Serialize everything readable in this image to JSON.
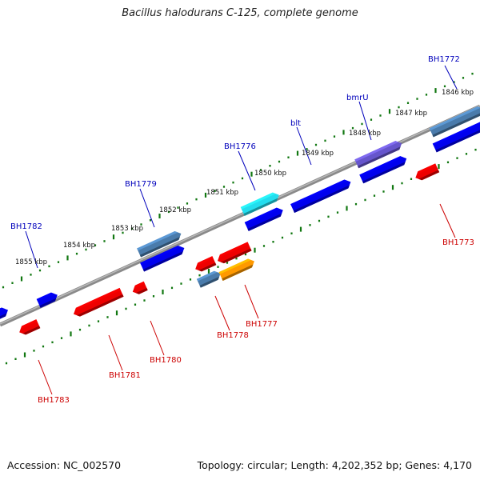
{
  "title": "Bacillus halodurans C-125, complete genome",
  "footer": {
    "accession_label": "Accession:",
    "accession": "NC_002570",
    "topology_label": "Topology:",
    "topology": "circular",
    "length_label": "Length:",
    "length": "4,202,352 bp",
    "genes_label": "Genes:",
    "genes": "4,170"
  },
  "scale_ticks": [
    "1846 kbp",
    "1847 kbp",
    "1848 kbp",
    "1849 kbp",
    "1850 kbp",
    "1851 kbp",
    "1852 kbp",
    "1853 kbp",
    "1854 kbp",
    "1855 kbp"
  ],
  "colors": {
    "forward_label": "#0000bb",
    "reverse_label": "#cc0000",
    "backbone": "#777777",
    "tick_dots": "#117711",
    "blue_gene": "#0000ee",
    "red_gene": "#ee0000",
    "steel_gene": "#4a7bab",
    "cyan_gene": "#22ddee",
    "purple_gene": "#6655cc",
    "orange_gene": "#ff9900"
  },
  "forward_labels": [
    "BH1772",
    "bmrU",
    "blt",
    "BH1776",
    "BH1779",
    "BH1782"
  ],
  "reverse_labels": [
    "BH1773",
    "BH1777",
    "BH1778",
    "BH1780",
    "BH1781",
    "BH1783"
  ]
}
